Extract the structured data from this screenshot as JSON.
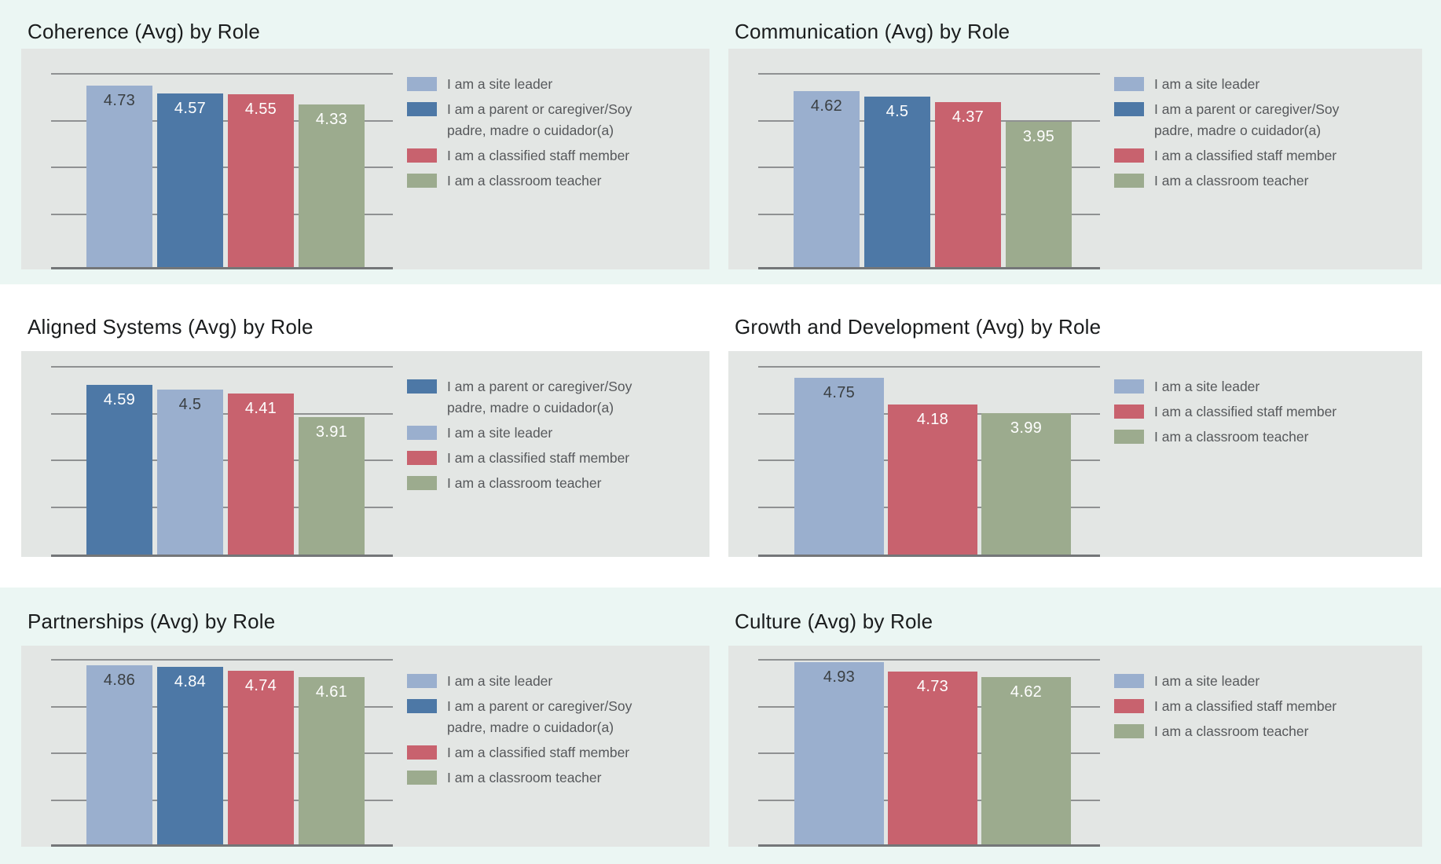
{
  "page": {
    "background_color": "#ebf6f3",
    "band_color": "#ffffff",
    "panel_color": "#e3e6e4",
    "gridline_color": "#8f9192",
    "axis_color": "#747678",
    "title_color": "#1a1c1d",
    "legend_text_color": "#56585b"
  },
  "palette": {
    "site_leader": "#9aafce",
    "parent": "#4d78a6",
    "classified": "#c8626e",
    "classroom": "#9cab8e"
  },
  "role_labels": {
    "site_leader": "I am a site leader",
    "parent": "I am a parent or caregiver/Soy padre, madre o cuidador(a)",
    "classified": "I am a classified staff member",
    "classroom": "I am a classroom teacher"
  },
  "chart_data": [
    {
      "type": "bar",
      "title": "Coherence (Avg) by Role",
      "ylim": [
        1,
        5
      ],
      "gridline_values": [
        5,
        4,
        3,
        2
      ],
      "grid": true,
      "legend_position": "right",
      "series": [
        {
          "role": "site_leader",
          "name": "I am a site leader",
          "value": 4.73,
          "label": "4.73"
        },
        {
          "role": "parent",
          "name": "I am a parent or caregiver/Soy padre, madre o cuidador(a)",
          "value": 4.57,
          "label": "4.57"
        },
        {
          "role": "classified",
          "name": "I am a classified staff member",
          "value": 4.55,
          "label": "4.55"
        },
        {
          "role": "classroom",
          "name": "I am a classroom teacher",
          "value": 4.33,
          "label": "4.33"
        }
      ]
    },
    {
      "type": "bar",
      "title": "Communication (Avg) by Role",
      "ylim": [
        1,
        5
      ],
      "gridline_values": [
        5,
        4,
        3,
        2
      ],
      "grid": true,
      "legend_position": "right",
      "series": [
        {
          "role": "site_leader",
          "name": "I am a site leader",
          "value": 4.62,
          "label": "4.62"
        },
        {
          "role": "parent",
          "name": "I am a parent or caregiver/Soy padre, madre o cuidador(a)",
          "value": 4.5,
          "label": "4.5"
        },
        {
          "role": "classified",
          "name": "I am a classified staff member",
          "value": 4.37,
          "label": "4.37"
        },
        {
          "role": "classroom",
          "name": "I am a classroom teacher",
          "value": 3.95,
          "label": "3.95"
        }
      ]
    },
    {
      "type": "bar",
      "title": "Aligned Systems (Avg) by Role",
      "ylim": [
        1,
        5
      ],
      "gridline_values": [
        5,
        4,
        3,
        2
      ],
      "grid": true,
      "legend_position": "right",
      "series": [
        {
          "role": "parent",
          "name": "I am a parent or caregiver/Soy padre, madre o cuidador(a)",
          "value": 4.59,
          "label": "4.59"
        },
        {
          "role": "site_leader",
          "name": "I am a site leader",
          "value": 4.5,
          "label": "4.5"
        },
        {
          "role": "classified",
          "name": "I am a classified staff member",
          "value": 4.41,
          "label": "4.41"
        },
        {
          "role": "classroom",
          "name": "I am a classroom teacher",
          "value": 3.91,
          "label": "3.91"
        }
      ]
    },
    {
      "type": "bar",
      "title": "Growth and Development (Avg) by Role",
      "ylim": [
        1,
        5
      ],
      "gridline_values": [
        5,
        4,
        3,
        2
      ],
      "grid": true,
      "legend_position": "right",
      "series": [
        {
          "role": "site_leader",
          "name": "I am a site leader",
          "value": 4.75,
          "label": "4.75"
        },
        {
          "role": "classified",
          "name": "I am a classified staff member",
          "value": 4.18,
          "label": "4.18"
        },
        {
          "role": "classroom",
          "name": "I am a classroom teacher",
          "value": 3.99,
          "label": "3.99"
        }
      ]
    },
    {
      "type": "bar",
      "title": "Partnerships (Avg) by Role",
      "ylim": [
        1,
        5
      ],
      "gridline_values": [
        5,
        4,
        3,
        2
      ],
      "grid": true,
      "legend_position": "right",
      "series": [
        {
          "role": "site_leader",
          "name": "I am a site leader",
          "value": 4.86,
          "label": "4.86"
        },
        {
          "role": "parent",
          "name": "I am a parent or caregiver/Soy padre, madre o cuidador(a)",
          "value": 4.84,
          "label": "4.84"
        },
        {
          "role": "classified",
          "name": "I am a classified staff member",
          "value": 4.74,
          "label": "4.74"
        },
        {
          "role": "classroom",
          "name": "I am a classroom teacher",
          "value": 4.61,
          "label": "4.61"
        }
      ]
    },
    {
      "type": "bar",
      "title": "Culture (Avg) by Role",
      "ylim": [
        1,
        5
      ],
      "gridline_values": [
        5,
        4,
        3,
        2
      ],
      "grid": true,
      "legend_position": "right",
      "series": [
        {
          "role": "site_leader",
          "name": "I am a site leader",
          "value": 4.93,
          "label": "4.93"
        },
        {
          "role": "classified",
          "name": "I am a classified staff member",
          "value": 4.73,
          "label": "4.73"
        },
        {
          "role": "classroom",
          "name": "I am a classroom teacher",
          "value": 4.62,
          "label": "4.62"
        }
      ]
    }
  ]
}
